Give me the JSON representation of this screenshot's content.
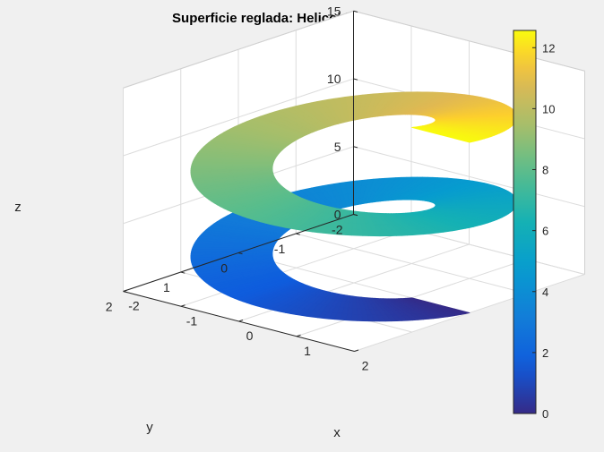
{
  "chart_data": {
    "type": "surface3d",
    "title": "Superficie reglada: Helicoide",
    "xlabel": "x",
    "ylabel": "y",
    "zlabel": "z",
    "xlim": [
      -2,
      2
    ],
    "ylim": [
      -2,
      2
    ],
    "zlim": [
      0,
      15
    ],
    "xticks": [
      "-2",
      "-1",
      "0",
      "1",
      "2"
    ],
    "yticks": [
      "-2",
      "-1",
      "0",
      "1",
      "2"
    ],
    "zticks": [
      "0",
      "5",
      "10",
      "15"
    ],
    "grid": true,
    "colormap": "parula",
    "surface": {
      "name": "helicoide",
      "x_formula": "r*cos(t)",
      "y_formula": "r*sin(t)",
      "z_formula": "t",
      "r_range": [
        1,
        2
      ],
      "t_range": [
        0,
        12.566
      ]
    },
    "colorbar": {
      "location": "right",
      "limits": [
        0,
        12.566
      ],
      "ticks": [
        "0",
        "2",
        "4",
        "6",
        "8",
        "10",
        "12"
      ]
    }
  }
}
